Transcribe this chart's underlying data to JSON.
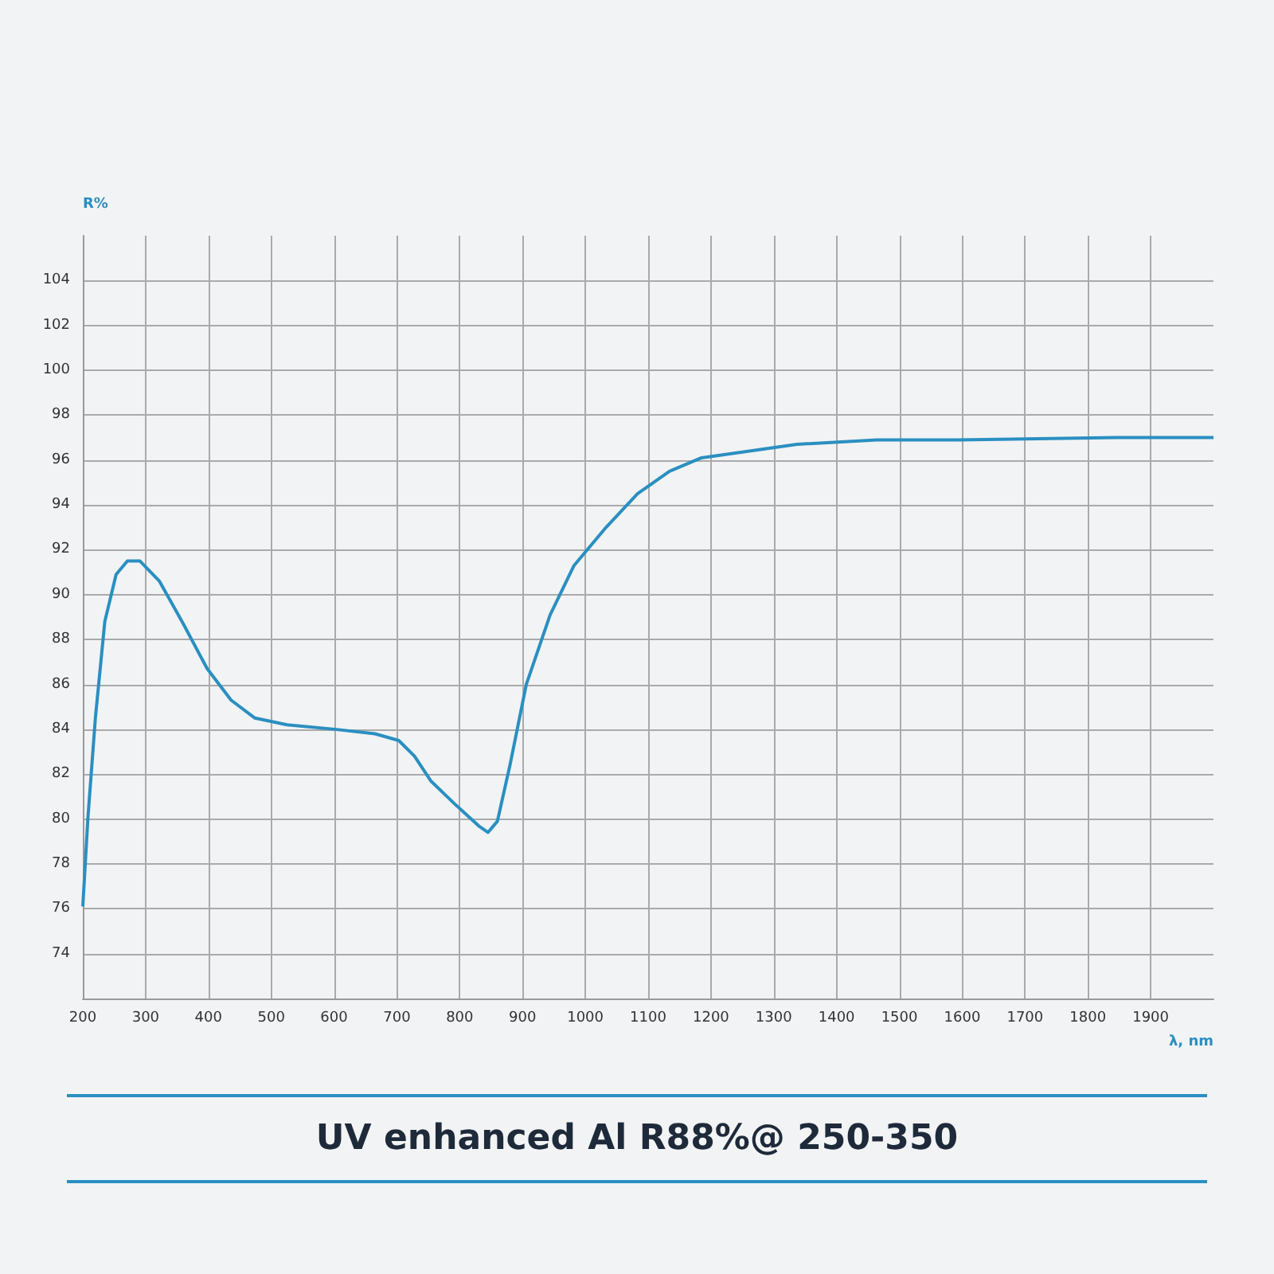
{
  "chart_data": {
    "type": "line",
    "title": "UV enhanced Al R88%@ 250-350",
    "xlabel": "λ, nm",
    "ylabel": "R%",
    "x": [
      200,
      208,
      220,
      235,
      253,
      271,
      291,
      322,
      360,
      398,
      436,
      474,
      525,
      601,
      665,
      703,
      728,
      754,
      791,
      830,
      845,
      860,
      880,
      906,
      944,
      982,
      1033,
      1083,
      1134,
      1185,
      1261,
      1337,
      1464,
      1591,
      1845,
      2000
    ],
    "series": [
      {
        "color": "#2a8fc1",
        "values": [
          76.1,
          80,
          84.5,
          88.8,
          90.9,
          91.5,
          91.5,
          90.6,
          88.7,
          86.7,
          85.3,
          84.5,
          84.2,
          84.0,
          83.8,
          83.5,
          82.8,
          81.7,
          80.7,
          79.7,
          79.4,
          79.9,
          82.4,
          86.0,
          89.1,
          91.3,
          93.0,
          94.5,
          95.5,
          96.1,
          96.4,
          96.7,
          96.9,
          96.9,
          97.0,
          97.0
        ]
      }
    ],
    "xlim": [
      200,
      2000
    ],
    "xticks": [
      200,
      300,
      400,
      500,
      600,
      700,
      800,
      900,
      1000,
      1100,
      1200,
      1300,
      1400,
      1500,
      1600,
      1700,
      1800,
      1900
    ],
    "ylim": [
      72,
      106
    ],
    "yticks": [
      74,
      76,
      78,
      80,
      82,
      84,
      86,
      88,
      90,
      92,
      94,
      96,
      98,
      100,
      102,
      104
    ],
    "grid": true
  }
}
